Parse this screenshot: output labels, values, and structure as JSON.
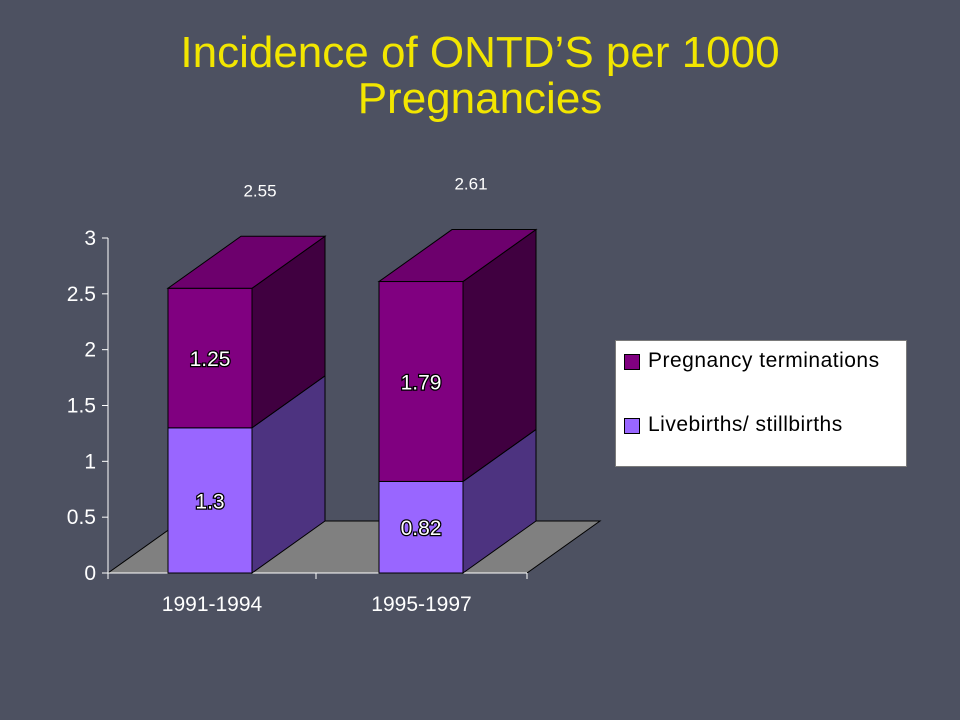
{
  "title": {
    "line1": "Incidence of ONTD’S per 1000",
    "line2": "Pregnancies"
  },
  "chart_data": {
    "type": "bar",
    "stacked": true,
    "three_d": true,
    "categories": [
      "1991-1994",
      "1995-1997"
    ],
    "series": [
      {
        "name": "Livebirths/ stillbirths",
        "values": [
          1.3,
          0.82
        ],
        "color": "#9966ff",
        "labels": [
          "1.3",
          "0.82"
        ]
      },
      {
        "name": "Pregnancy terminations",
        "values": [
          1.25,
          1.79
        ],
        "color": "#800080",
        "labels": [
          "1.25",
          "1.79"
        ]
      }
    ],
    "totals": [
      {
        "value": 2.55,
        "label": "2.55"
      },
      {
        "value": 2.61,
        "label": "2.61"
      }
    ],
    "y_ticks": [
      "0",
      "0.5",
      "1",
      "1.5",
      "2",
      "2.5",
      "3"
    ],
    "ylim": [
      0,
      3
    ],
    "legend_position": "right",
    "colors": {
      "background": "#4d5161",
      "title": "#f2e600",
      "floor": "#808080",
      "axis": "#ffffff"
    }
  }
}
